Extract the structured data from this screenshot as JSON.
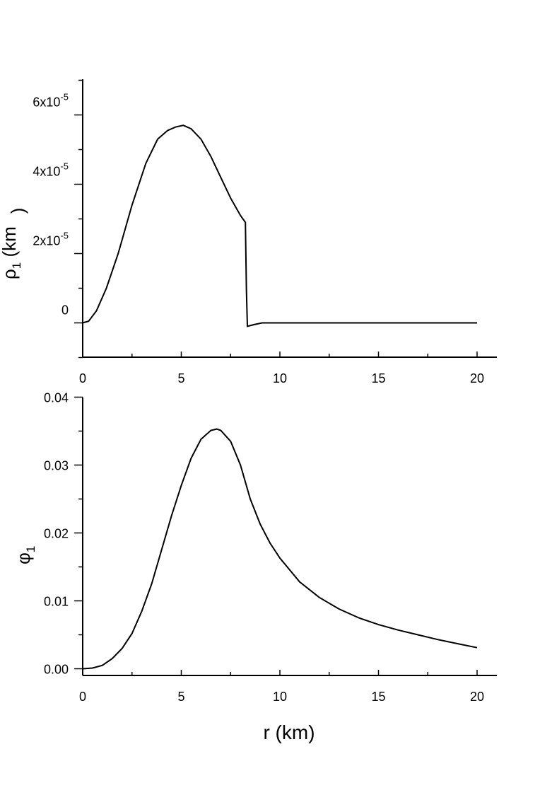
{
  "chart_data": [
    {
      "type": "line",
      "ylabel": {
        "symbol": "ρ",
        "subscript": "1",
        "rest": " (km",
        "superscript": "",
        "close": ")"
      },
      "xlim": [
        0,
        21
      ],
      "ylim": [
        -1e-05,
        7e-05
      ],
      "x_ticks": [
        "0",
        "5",
        "10",
        "15",
        "20"
      ],
      "y_ticks": [
        {
          "value": 0,
          "mantissa": "0",
          "exponent": ""
        },
        {
          "value": 2e-05,
          "mantissa": "2x10",
          "exponent": "-5"
        },
        {
          "value": 4e-05,
          "mantissa": "4x10",
          "exponent": "-5"
        },
        {
          "value": 6e-05,
          "mantissa": "6x10",
          "exponent": "-5"
        }
      ],
      "series": [
        {
          "x": [
            0,
            0.3,
            0.7,
            1.2,
            1.8,
            2.5,
            3.2,
            3.8,
            4.3,
            4.7,
            5.1,
            5.5,
            6.0,
            6.5,
            7.0,
            7.5,
            8.0,
            8.25,
            8.3,
            8.35,
            8.7,
            9.1,
            10,
            15,
            20
          ],
          "y": [
            0,
            5e-07,
            3.5e-06,
            1e-05,
            2e-05,
            3.4e-05,
            4.6e-05,
            5.3e-05,
            5.55e-05,
            5.65e-05,
            5.7e-05,
            5.6e-05,
            5.3e-05,
            4.8e-05,
            4.2e-05,
            3.6e-05,
            3.1e-05,
            2.9e-05,
            1e-05,
            -1e-06,
            -5e-07,
            0,
            0,
            0,
            0
          ]
        }
      ]
    },
    {
      "type": "line",
      "ylabel": {
        "symbol": "φ",
        "subscript": "1"
      },
      "xlabel": "r (km)",
      "xlim": [
        0,
        21
      ],
      "ylim": [
        -0.001,
        0.04
      ],
      "x_ticks": [
        "0",
        "5",
        "10",
        "15",
        "20"
      ],
      "y_ticks": [
        {
          "value": 0,
          "label": "0.00"
        },
        {
          "value": 0.01,
          "label": "0.01"
        },
        {
          "value": 0.02,
          "label": "0.02"
        },
        {
          "value": 0.03,
          "label": "0.03"
        },
        {
          "value": 0.04,
          "label": "0.04"
        }
      ],
      "series": [
        {
          "x": [
            0,
            0.5,
            1.0,
            1.5,
            2.0,
            2.5,
            3.0,
            3.5,
            4.0,
            4.5,
            5.0,
            5.5,
            6.0,
            6.5,
            6.8,
            7.0,
            7.5,
            8.0,
            8.5,
            9.0,
            9.5,
            10,
            11,
            12,
            13,
            14,
            15,
            16,
            17,
            18,
            19,
            20
          ],
          "y": [
            0,
            0.0001,
            0.0005,
            0.0015,
            0.003,
            0.0052,
            0.0085,
            0.0125,
            0.0175,
            0.0225,
            0.027,
            0.031,
            0.0338,
            0.0351,
            0.0353,
            0.0351,
            0.0335,
            0.03,
            0.025,
            0.0213,
            0.0185,
            0.0163,
            0.0128,
            0.0105,
            0.0088,
            0.0075,
            0.0065,
            0.0057,
            0.005,
            0.0043,
            0.0037,
            0.0031
          ]
        }
      ]
    }
  ]
}
